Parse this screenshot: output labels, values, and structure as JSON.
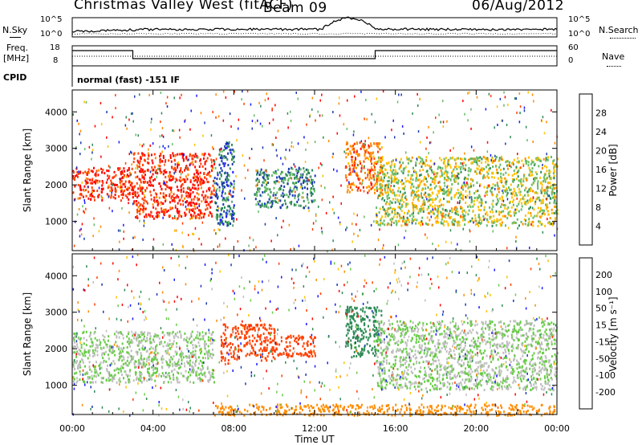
{
  "header": {
    "station": "Christmas Valley West (fitACF)",
    "beam": "Beam 09",
    "date": "06/Aug/2012"
  },
  "mini_panels": {
    "nsky_label": "N.Sky",
    "nsearch_label": "N.Search",
    "nsky_ticks": [
      "10^5",
      "10^0"
    ],
    "nsearch_ticks": [
      "10^5",
      "10^0"
    ],
    "freq_label_1": "Freq.",
    "freq_label_2": "[MHz]",
    "freq_ticks": [
      "18",
      "8"
    ],
    "nave_label": "Nave",
    "nave_ticks": [
      "60",
      "0"
    ],
    "cpid_label": "CPID",
    "cpid_value": "normal (fast) -151 IF"
  },
  "axes": {
    "xlabel": "Time UT",
    "x_ticks": [
      "00:00",
      "04:00",
      "08:00",
      "12:00",
      "16:00",
      "20:00",
      "00:00"
    ],
    "ylabel": "Slant Range [km]",
    "y_ticks": [
      "1000",
      "2000",
      "3000",
      "4000"
    ]
  },
  "colorbars": {
    "power": {
      "label": "Power [dB]",
      "ticks": [
        "4",
        "8",
        "12",
        "16",
        "20",
        "24",
        "28"
      ],
      "colors": [
        "#1a1aff",
        "#1a3ab0",
        "#2e8b57",
        "#66bb66",
        "#ffc000",
        "#ff8c00",
        "#ff4000",
        "#ff0000"
      ]
    },
    "velocity": {
      "label": "Velocity [m s⁻¹]",
      "ticks": [
        "200",
        "100",
        "50",
        "15",
        "-15",
        "-50",
        "-100",
        "-200"
      ],
      "colors": [
        "#1a1aff",
        "#1a3ab0",
        "#2e8b57",
        "#66cc44",
        "#bfbfbf",
        "#ffc000",
        "#ff8c00",
        "#ff4000",
        "#ff0000"
      ]
    }
  },
  "chart_data": [
    {
      "type": "heatmap",
      "name": "power",
      "x_range": [
        "00:00",
        "24:00"
      ],
      "ylim": [
        200,
        4600
      ],
      "features": [
        {
          "t0": 0.0,
          "t1": 3.0,
          "r0": 1600,
          "r1": 2500,
          "value": 28
        },
        {
          "t0": 3.0,
          "t1": 7.0,
          "r0": 1100,
          "r1": 2900,
          "value": 28
        },
        {
          "t0": 7.0,
          "t1": 8.0,
          "r0": 900,
          "r1": 3200,
          "value": 8
        },
        {
          "t0": 9.0,
          "t1": 12.0,
          "r0": 1400,
          "r1": 2500,
          "value": 10
        },
        {
          "t0": 13.5,
          "t1": 15.3,
          "r0": 1800,
          "r1": 3200,
          "value": 24
        },
        {
          "t0": 15.0,
          "t1": 24.0,
          "r0": 900,
          "r1": 2800,
          "value": 16
        }
      ]
    },
    {
      "type": "heatmap",
      "name": "velocity",
      "x_range": [
        "00:00",
        "24:00"
      ],
      "ylim": [
        200,
        4600
      ],
      "features": [
        {
          "t0": 0.0,
          "t1": 7.0,
          "r0": 1100,
          "r1": 2500,
          "value": 0
        },
        {
          "t0": 7.3,
          "t1": 10.0,
          "r0": 1700,
          "r1": 2700,
          "value": -200
        },
        {
          "t0": 10.0,
          "t1": 12.0,
          "r0": 1800,
          "r1": 2400,
          "value": -200
        },
        {
          "t0": 13.5,
          "t1": 15.3,
          "r0": 1800,
          "r1": 3200,
          "value": 50
        },
        {
          "t0": 15.0,
          "t1": 24.0,
          "r0": 900,
          "r1": 2800,
          "value": 0
        },
        {
          "t0": 7.0,
          "t1": 24.0,
          "r0": 200,
          "r1": 500,
          "value": -100
        }
      ]
    }
  ]
}
